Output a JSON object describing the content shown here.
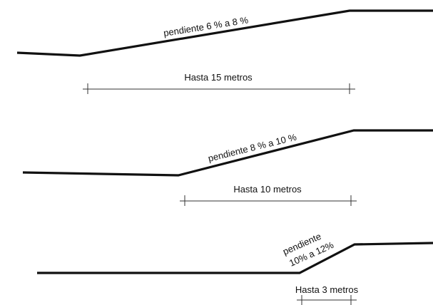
{
  "profiles": [
    {
      "slope_label": "pendiente 6 % a 8 %",
      "distance_label": "Hasta 15 metros"
    },
    {
      "slope_label": "pendiente 8 % a 10 %",
      "distance_label": "Hasta 10 metros"
    },
    {
      "slope_label_line1": "pendiente",
      "slope_label_line2": "10% a 12%",
      "distance_label": "Hasta 3 metros"
    }
  ]
}
